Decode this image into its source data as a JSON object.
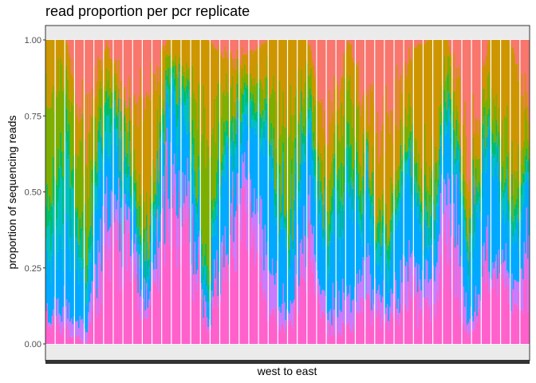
{
  "chart_data": {
    "type": "bar",
    "stacked": true,
    "title": "read proportion per pcr replicate",
    "xlabel": "west to east",
    "ylabel": "proportion of sequencing reads",
    "ylim": [
      0,
      1
    ],
    "yticks": [
      "0.00",
      "0.25",
      "0.50",
      "0.75",
      "1.00"
    ],
    "grid": true,
    "panel_background": "#ebebeb",
    "category_count": 400,
    "series_colors": [
      "#ff61cc",
      "#c77cff",
      "#00a9ff",
      "#00bfc4",
      "#00be67",
      "#7cae00",
      "#cd9600",
      "#f8766d"
    ],
    "block_separators_every": 8,
    "columns": [
      [
        0.1,
        0.0,
        0.12,
        0.08,
        0.1,
        0.4,
        0.2,
        0.0
      ],
      [
        0.05,
        0.08,
        0.3,
        0.2,
        0.12,
        0.15,
        0.1,
        0.0
      ],
      [
        0.0,
        0.05,
        0.1,
        0.05,
        0.05,
        0.25,
        0.2,
        0.3
      ],
      [
        0.3,
        0.15,
        0.25,
        0.1,
        0.05,
        0.05,
        0.1,
        0.0
      ],
      [
        0.35,
        0.1,
        0.1,
        0.05,
        0.05,
        0.1,
        0.05,
        0.2
      ],
      [
        0.05,
        0.05,
        0.05,
        0.05,
        0.05,
        0.1,
        0.45,
        0.2
      ],
      [
        0.45,
        0.1,
        0.25,
        0.05,
        0.05,
        0.05,
        0.05,
        0.0
      ],
      [
        0.4,
        0.1,
        0.2,
        0.1,
        0.05,
        0.05,
        0.1,
        0.0
      ],
      [
        0.05,
        0.02,
        0.05,
        0.03,
        0.05,
        0.45,
        0.35,
        0.0
      ],
      [
        0.3,
        0.05,
        0.3,
        0.05,
        0.05,
        0.1,
        0.1,
        0.05
      ],
      [
        0.45,
        0.15,
        0.15,
        0.05,
        0.05,
        0.05,
        0.05,
        0.05
      ],
      [
        0.1,
        0.2,
        0.35,
        0.05,
        0.05,
        0.1,
        0.15,
        0.0
      ],
      [
        0.05,
        0.05,
        0.2,
        0.05,
        0.05,
        0.3,
        0.3,
        0.0
      ],
      [
        0.3,
        0.1,
        0.3,
        0.05,
        0.05,
        0.1,
        0.1,
        0.0
      ],
      [
        0.05,
        0.05,
        0.2,
        0.05,
        0.05,
        0.1,
        0.2,
        0.3
      ],
      [
        0.05,
        0.1,
        0.35,
        0.05,
        0.1,
        0.2,
        0.15,
        0.0
      ],
      [
        0.15,
        0.1,
        0.2,
        0.05,
        0.05,
        0.05,
        0.2,
        0.2
      ],
      [
        0.05,
        0.05,
        0.1,
        0.05,
        0.05,
        0.05,
        0.3,
        0.35
      ],
      [
        0.2,
        0.1,
        0.3,
        0.05,
        0.05,
        0.1,
        0.15,
        0.05
      ],
      [
        0.1,
        0.1,
        0.1,
        0.05,
        0.05,
        0.1,
        0.5,
        0.0
      ],
      [
        0.35,
        0.2,
        0.2,
        0.05,
        0.05,
        0.1,
        0.05,
        0.0
      ],
      [
        0.02,
        0.05,
        0.2,
        0.05,
        0.05,
        0.05,
        0.18,
        0.4
      ],
      [
        0.3,
        0.05,
        0.35,
        0.05,
        0.05,
        0.1,
        0.1,
        0.0
      ],
      [
        0.15,
        0.05,
        0.15,
        0.05,
        0.05,
        0.1,
        0.45,
        0.0
      ],
      [
        0.2,
        0.1,
        0.2,
        0.05,
        0.05,
        0.1,
        0.1,
        0.2
      ]
    ]
  }
}
